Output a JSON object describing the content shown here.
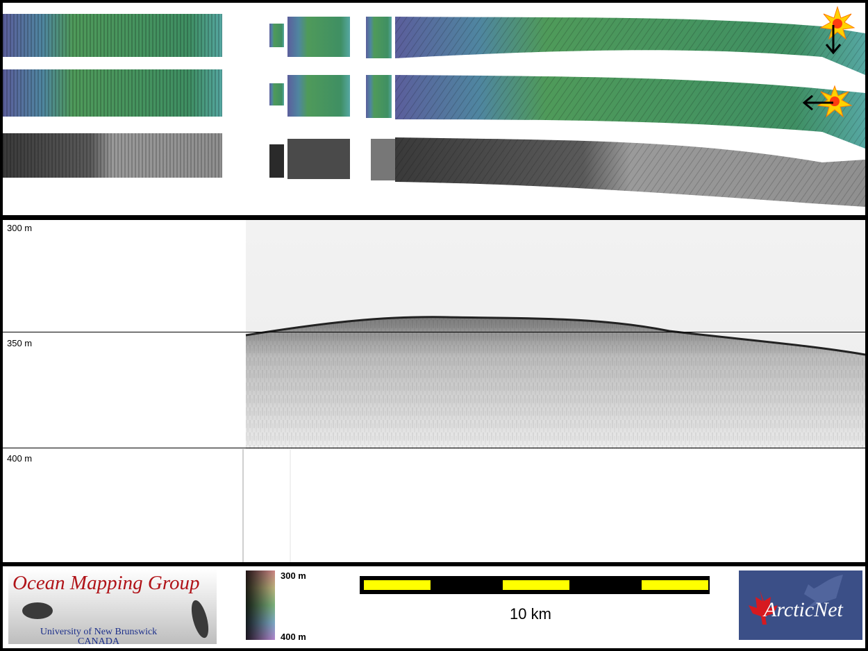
{
  "swath_panel": {
    "rows": [
      "bathymetry-shaded-top",
      "bathymetry-shaded-middle",
      "backscatter-grayscale"
    ]
  },
  "profile_panel": {
    "depth_labels": [
      "300 m",
      "350 m",
      "400 m"
    ]
  },
  "footer": {
    "ocean_mapping_logo": {
      "title": "Ocean Mapping Group",
      "line1": "University of New Brunswick",
      "line2": "CANADA"
    },
    "colorbar": {
      "top_label": "300 m",
      "bottom_label": "400 m"
    },
    "scale_bar": {
      "label": "10 km",
      "color": "#ffff00"
    },
    "arcticnet_logo": {
      "text": "ArcticNet",
      "background": "#3b4f87",
      "leaf_color": "#d71920"
    }
  }
}
